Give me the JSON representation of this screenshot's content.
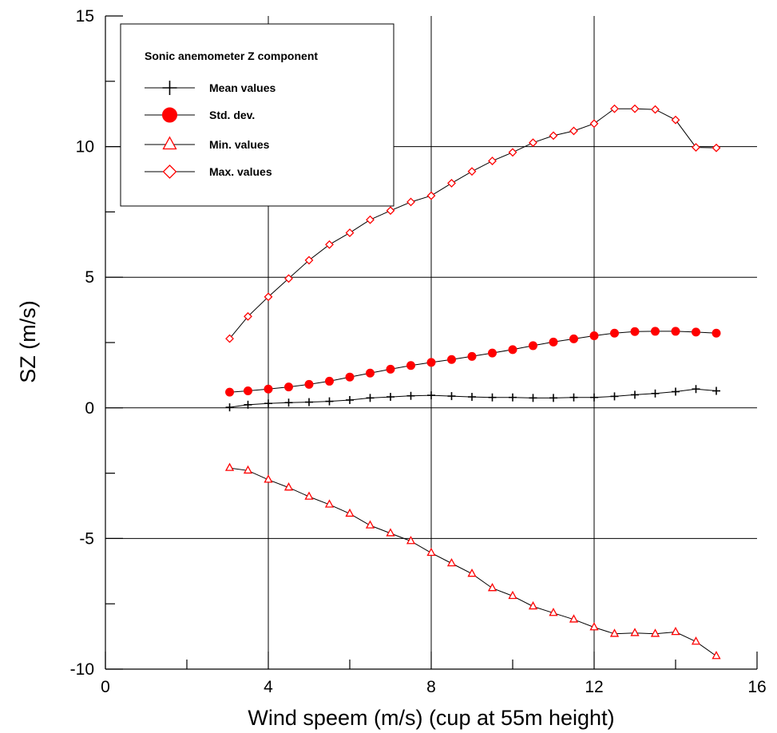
{
  "chart_data": {
    "type": "line",
    "title": "",
    "xlabel": "Wind speem (m/s) (cup  at 55m height)",
    "ylabel": "SZ (m/s)",
    "xlim": [
      0,
      16
    ],
    "ylim": [
      -10,
      15
    ],
    "xticks": [
      0,
      4,
      8,
      12,
      16
    ],
    "yticks": [
      -10,
      -5,
      0,
      5,
      10,
      15
    ],
    "x_minor_ticks": [
      2,
      6,
      10,
      14
    ],
    "y_minor_ticks": [
      -7.5,
      -2.5,
      2.5,
      7.5,
      12.5
    ],
    "grid": true,
    "legend": {
      "title": "Sonic anemometer Z component",
      "placement": "top-left"
    },
    "x": [
      3.05,
      3.5,
      4,
      4.5,
      5,
      5.5,
      6,
      6.5,
      7,
      7.5,
      8,
      8.5,
      9,
      9.5,
      10,
      10.5,
      11,
      11.5,
      12,
      12.5,
      13,
      13.5,
      14,
      14.5,
      15
    ],
    "series": [
      {
        "name": "Mean values",
        "marker": "plus",
        "color": "#000000",
        "values": [
          0.02,
          0.12,
          0.17,
          0.2,
          0.22,
          0.25,
          0.3,
          0.38,
          0.42,
          0.46,
          0.48,
          0.45,
          0.42,
          0.4,
          0.4,
          0.38,
          0.38,
          0.4,
          0.4,
          0.44,
          0.5,
          0.55,
          0.62,
          0.72,
          0.65
        ]
      },
      {
        "name": "Std. dev.",
        "marker": "circle",
        "color": "#ff0000",
        "values": [
          0.6,
          0.65,
          0.72,
          0.8,
          0.9,
          1.02,
          1.18,
          1.33,
          1.48,
          1.62,
          1.74,
          1.85,
          1.97,
          2.1,
          2.23,
          2.38,
          2.52,
          2.64,
          2.76,
          2.86,
          2.92,
          2.93,
          2.93,
          2.9,
          2.86
        ]
      },
      {
        "name": "Min. values",
        "marker": "triangle",
        "color": "#ff0000",
        "values": [
          -2.3,
          -2.4,
          -2.75,
          -3.05,
          -3.4,
          -3.7,
          -4.05,
          -4.5,
          -4.8,
          -5.1,
          -5.55,
          -5.95,
          -6.35,
          -6.9,
          -7.2,
          -7.6,
          -7.85,
          -8.1,
          -8.4,
          -8.65,
          -8.62,
          -8.65,
          -8.58,
          -8.95,
          -9.5
        ]
      },
      {
        "name": "Max. values",
        "marker": "diamond",
        "color": "#ff0000",
        "values": [
          2.65,
          3.5,
          4.25,
          4.95,
          5.65,
          6.25,
          6.7,
          7.2,
          7.55,
          7.88,
          8.12,
          8.6,
          9.05,
          9.45,
          9.78,
          10.15,
          10.42,
          10.6,
          10.88,
          11.45,
          11.45,
          11.42,
          11.02,
          9.97,
          9.95
        ]
      }
    ]
  }
}
